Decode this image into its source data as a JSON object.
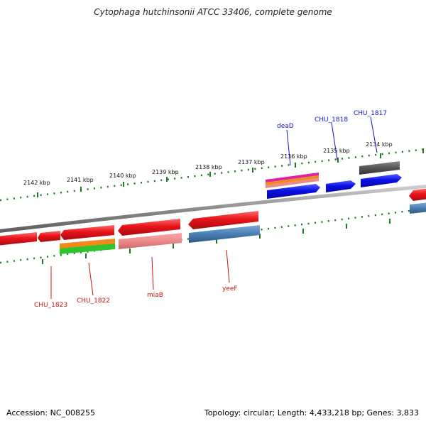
{
  "title": "Cytophaga hutchinsonii ATCC 33406, complete genome",
  "accession": "Accession: NC_008255",
  "topology": "Topology: circular; Length: 4,433,218 bp; Genes: 3,833",
  "scale_labels": [
    "2142 kbp",
    "2141 kbp",
    "2140 kbp",
    "2139 kbp",
    "2138 kbp",
    "2137 kbp",
    "2136 kbp",
    "2135 kbp",
    "2134 kbp"
  ],
  "gene_labels": {
    "deaD": "deaD",
    "chu1818": "CHU_1818",
    "chu1817": "CHU_1817",
    "chu1823": "CHU_1823",
    "chu1822": "CHU_1822",
    "miaB": "miaB",
    "yeeF": "yeeF"
  },
  "colors": {
    "red": "#e8141a",
    "blue": "#0a10e6",
    "steelblue": "#4a7fb4",
    "gray": "#5a5a5a",
    "tick_green": "#1d7a1d",
    "label_blue": "#1313c8",
    "label_red": "#c81313"
  }
}
